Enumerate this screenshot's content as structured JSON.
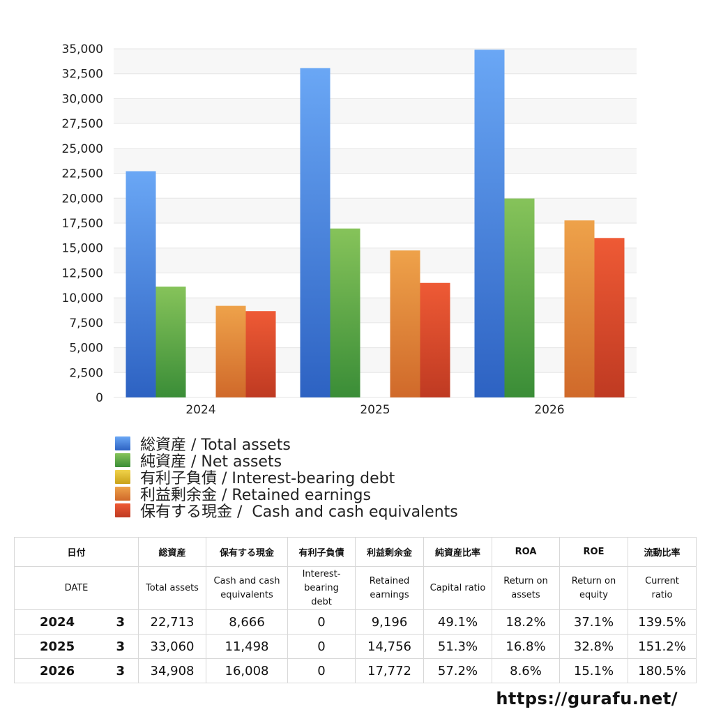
{
  "chart_data": {
    "type": "bar",
    "categories": [
      "2024",
      "2025",
      "2026"
    ],
    "ylim": [
      0,
      35000
    ],
    "yticks": [
      0,
      2500,
      5000,
      7500,
      10000,
      12500,
      15000,
      17500,
      20000,
      22500,
      25000,
      27500,
      30000,
      32500,
      35000
    ],
    "ytick_labels": [
      "0",
      "2,500",
      "5,000",
      "7,500",
      "10,000",
      "12,500",
      "15,000",
      "17,500",
      "20,000",
      "22,500",
      "25,000",
      "27,500",
      "30,000",
      "32,500",
      "35,000"
    ],
    "grid": true,
    "legend_position": "bottom",
    "series": [
      {
        "name": "総資産 / Total assets",
        "values": [
          22713,
          33060,
          34908
        ],
        "color_top": "#6aa7f5",
        "color_bottom": "#2d62c2"
      },
      {
        "name": "純資産 / Net assets",
        "values": [
          11129,
          16960,
          19975
        ],
        "color_top": "#86c35a",
        "color_bottom": "#3a8d37"
      },
      {
        "name": "有利子負債 / Interest-bearing debt",
        "values": [
          0,
          0,
          0
        ],
        "color_top": "#f0d24a",
        "color_bottom": "#c9a21a"
      },
      {
        "name": "利益剰余金 / Retained earnings",
        "values": [
          9196,
          14756,
          17772
        ],
        "color_top": "#eea24a",
        "color_bottom": "#d0692a"
      },
      {
        "name": "保有する現金 /  Cash and cash equivalents",
        "values": [
          8666,
          11498,
          16008
        ],
        "color_top": "#ee5a35",
        "color_bottom": "#bf3a22"
      }
    ]
  },
  "table": {
    "header_jp": [
      "日付",
      "総資産",
      "保有する現金",
      "有利子負債",
      "利益剰余金",
      "純資産比率",
      "ROA",
      "ROE",
      "流動比率"
    ],
    "header_en": [
      [
        "DATE"
      ],
      [
        "Total assets"
      ],
      [
        "Cash and cash",
        "equivalents"
      ],
      [
        "Interest-",
        "bearing",
        "debt"
      ],
      [
        "Retained",
        "earnings"
      ],
      [
        "Capital ratio"
      ],
      [
        "Return on",
        "assets"
      ],
      [
        "Return on",
        "equity"
      ],
      [
        "Current",
        "ratio"
      ]
    ],
    "rows": [
      {
        "year": "2024",
        "month": "3",
        "cells": [
          "22,713",
          "8,666",
          "0",
          "9,196",
          "49.1%",
          "18.2%",
          "37.1%",
          "139.5%"
        ]
      },
      {
        "year": "2025",
        "month": "3",
        "cells": [
          "33,060",
          "11,498",
          "0",
          "14,756",
          "51.3%",
          "16.8%",
          "32.8%",
          "151.2%"
        ]
      },
      {
        "year": "2026",
        "month": "3",
        "cells": [
          "34,908",
          "16,008",
          "0",
          "17,772",
          "57.2%",
          "8.6%",
          "15.1%",
          "180.5%"
        ]
      }
    ]
  },
  "site_url": "https://gurafu.net/"
}
